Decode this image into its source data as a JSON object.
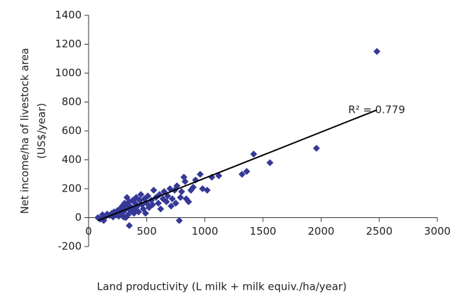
{
  "chart_data": {
    "type": "scatter",
    "ylabel": [
      "Net income/ha of livestock area",
      "(US$/year)"
    ],
    "xlabel": "Land productivity (L milk + milk equiv./ha/year)",
    "annotation": "R² = 0.779",
    "color": "#353896",
    "x": [
      80,
      100,
      120,
      130,
      150,
      160,
      180,
      200,
      210,
      220,
      240,
      250,
      260,
      270,
      280,
      290,
      300,
      300,
      310,
      320,
      320,
      330,
      340,
      340,
      350,
      350,
      360,
      370,
      380,
      390,
      400,
      400,
      410,
      420,
      430,
      440,
      450,
      460,
      470,
      480,
      490,
      500,
      510,
      520,
      540,
      550,
      560,
      580,
      600,
      610,
      620,
      640,
      650,
      670,
      680,
      700,
      710,
      720,
      740,
      750,
      760,
      780,
      790,
      800,
      820,
      830,
      840,
      860,
      880,
      900,
      920,
      960,
      980,
      1020,
      1060,
      1120,
      1320,
      1360,
      1420,
      1560,
      1960,
      2480
    ],
    "y": [
      0,
      -10,
      20,
      -20,
      10,
      25,
      15,
      30,
      5,
      40,
      20,
      50,
      10,
      60,
      30,
      80,
      5,
      40,
      100,
      0,
      60,
      140,
      20,
      90,
      -55,
      110,
      50,
      70,
      120,
      30,
      100,
      60,
      140,
      80,
      40,
      120,
      160,
      90,
      60,
      130,
      30,
      100,
      150,
      70,
      120,
      90,
      190,
      140,
      100,
      160,
      60,
      130,
      180,
      110,
      150,
      200,
      80,
      130,
      190,
      100,
      220,
      -20,
      140,
      180,
      280,
      250,
      130,
      110,
      190,
      210,
      260,
      300,
      200,
      190,
      280,
      290,
      300,
      320,
      440,
      380,
      480,
      1150
    ],
    "trendline": {
      "x": [
        80,
        2480
      ],
      "y": [
        -20,
        745
      ]
    },
    "xlim": [
      0,
      3000
    ],
    "xticks": [
      0,
      500,
      1000,
      1500,
      2000,
      2500,
      3000
    ],
    "ylim": [
      -200,
      1400
    ],
    "yticks": [
      -200,
      0,
      200,
      400,
      600,
      800,
      1000,
      1200,
      1400
    ]
  }
}
